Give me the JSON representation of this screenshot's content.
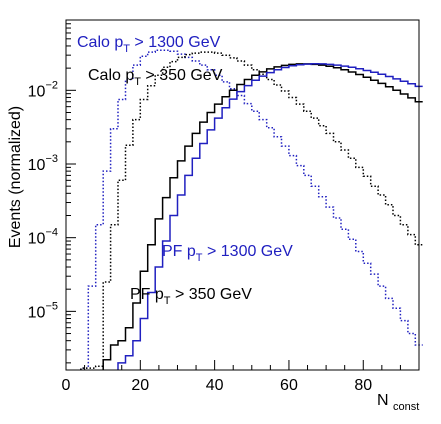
{
  "chart_data": {
    "type": "line",
    "xlabel": "N",
    "xlabel_sub": "const",
    "ylabel": "Events (normalized)",
    "xlim": [
      0,
      95
    ],
    "ylim": [
      1.6e-06,
      0.09
    ],
    "yscale": "log",
    "xticks": [
      {
        "value": 0,
        "label": "0"
      },
      {
        "value": 20,
        "label": "20"
      },
      {
        "value": 40,
        "label": "40"
      },
      {
        "value": 60,
        "label": "60"
      },
      {
        "value": 80,
        "label": "80"
      }
    ],
    "yticks": [
      {
        "value": 1e-05,
        "base": "10",
        "exp": "−5"
      },
      {
        "value": 0.0001,
        "base": "10",
        "exp": "−4"
      },
      {
        "value": 0.001,
        "base": "10",
        "exp": "−3"
      },
      {
        "value": 0.01,
        "base": "10",
        "exp": "−2"
      }
    ],
    "series": [
      {
        "color": "#2020c0",
        "style": "dotted",
        "x": [
          4,
          6,
          8,
          10,
          12,
          14,
          16,
          18,
          20,
          22,
          24,
          26,
          28,
          30,
          32,
          34,
          36,
          38,
          40,
          42,
          44,
          46,
          48,
          50,
          52,
          54,
          56,
          58,
          60,
          62,
          64,
          66,
          68,
          70,
          72,
          74,
          76,
          78,
          80,
          82,
          84,
          86,
          88,
          90,
          92,
          94
        ],
        "y": [
          1.7e-06,
          2.2e-05,
          0.00015,
          0.0008,
          0.003,
          0.0075,
          0.014,
          0.022,
          0.029,
          0.033,
          0.035,
          0.035,
          0.034,
          0.031,
          0.028,
          0.025,
          0.022,
          0.019,
          0.016,
          0.013,
          0.0105,
          0.0085,
          0.0066,
          0.0052,
          0.004,
          0.0031,
          0.00235,
          0.00175,
          0.0013,
          0.00095,
          0.0007,
          0.0005,
          0.00036,
          0.00026,
          0.000185,
          0.00013,
          9.5e-05,
          6.5e-05,
          4.5e-05,
          3.2e-05,
          2.2e-05,
          1.5e-05,
          1.1e-05,
          7.5e-06,
          5e-06,
          3.5e-06
        ]
      },
      {
        "color": "#000000",
        "style": "dotted",
        "x": [
          4,
          6,
          8,
          10,
          12,
          14,
          16,
          18,
          20,
          22,
          24,
          26,
          28,
          30,
          32,
          34,
          36,
          38,
          40,
          42,
          44,
          46,
          48,
          50,
          52,
          54,
          56,
          58,
          60,
          62,
          64,
          66,
          68,
          70,
          72,
          74,
          76,
          78,
          80,
          82,
          84,
          86,
          88,
          90,
          92,
          94
        ],
        "y": [
          1.7e-06,
          1.7e-06,
          1.8e-06,
          2.5e-05,
          0.00015,
          0.0006,
          0.0018,
          0.004,
          0.0075,
          0.0115,
          0.016,
          0.0205,
          0.0245,
          0.028,
          0.0305,
          0.032,
          0.033,
          0.033,
          0.032,
          0.03,
          0.0275,
          0.025,
          0.022,
          0.019,
          0.0165,
          0.014,
          0.0118,
          0.0098,
          0.008,
          0.0065,
          0.0052,
          0.0042,
          0.0033,
          0.0026,
          0.002,
          0.00155,
          0.0012,
          0.0009,
          0.00068,
          0.0005,
          0.00038,
          0.00028,
          0.0002,
          0.00015,
          0.00011,
          8e-05
        ]
      },
      {
        "color": "#000000",
        "style": "solid",
        "x": [
          10,
          12,
          14,
          16,
          18,
          20,
          22,
          24,
          26,
          28,
          30,
          32,
          34,
          36,
          38,
          40,
          42,
          44,
          46,
          48,
          50,
          52,
          54,
          56,
          58,
          60,
          62,
          64,
          66,
          68,
          70,
          72,
          74,
          76,
          78,
          80,
          82,
          84,
          86,
          88,
          90,
          92,
          94
        ],
        "y": [
          2.2e-06,
          3.5e-06,
          4e-06,
          6e-06,
          1.3e-05,
          3.5e-05,
          8e-05,
          0.00018,
          0.00035,
          0.00065,
          0.0011,
          0.00175,
          0.0026,
          0.0037,
          0.005,
          0.0065,
          0.0082,
          0.01,
          0.012,
          0.014,
          0.016,
          0.0178,
          0.0195,
          0.0208,
          0.0218,
          0.0225,
          0.0228,
          0.0228,
          0.0225,
          0.022,
          0.0212,
          0.0202,
          0.019,
          0.0177,
          0.0164,
          0.015,
          0.0137,
          0.0124,
          0.0112,
          0.01,
          0.0089,
          0.0079,
          0.007
        ]
      },
      {
        "color": "#2020c0",
        "style": "solid",
        "x": [
          14,
          16,
          18,
          20,
          22,
          24,
          26,
          28,
          30,
          32,
          34,
          36,
          38,
          40,
          42,
          44,
          46,
          48,
          50,
          52,
          54,
          56,
          58,
          60,
          62,
          64,
          66,
          68,
          70,
          72,
          74,
          76,
          78,
          80,
          82,
          84,
          86,
          88,
          90,
          92,
          94
        ],
        "y": [
          2e-06,
          2.5e-06,
          4e-06,
          8e-06,
          1.8e-05,
          4e-05,
          9e-05,
          0.0002,
          0.00038,
          0.0007,
          0.0012,
          0.0019,
          0.0029,
          0.0042,
          0.0058,
          0.0076,
          0.0096,
          0.0116,
          0.0137,
          0.0156,
          0.0174,
          0.019,
          0.0204,
          0.0215,
          0.0222,
          0.0227,
          0.0229,
          0.0228,
          0.0225,
          0.022,
          0.0213,
          0.0205,
          0.0196,
          0.0186,
          0.0176,
          0.0165,
          0.0154,
          0.0143,
          0.0133,
          0.0123,
          0.0113
        ]
      }
    ],
    "annotations": [
      {
        "color": "#2020c0",
        "pre": "Calo p",
        "sub": "T",
        "post": " > 1300 GeV"
      },
      {
        "color": "#000000",
        "pre": "Calo p",
        "sub": "T",
        "post": " > 350 GeV"
      },
      {
        "color": "#2020c0",
        "pre": "PF p",
        "sub": "T",
        "post": " > 1300 GeV"
      },
      {
        "color": "#000000",
        "pre": "PF p",
        "sub": "T",
        "post": " > 350 GeV"
      }
    ]
  }
}
